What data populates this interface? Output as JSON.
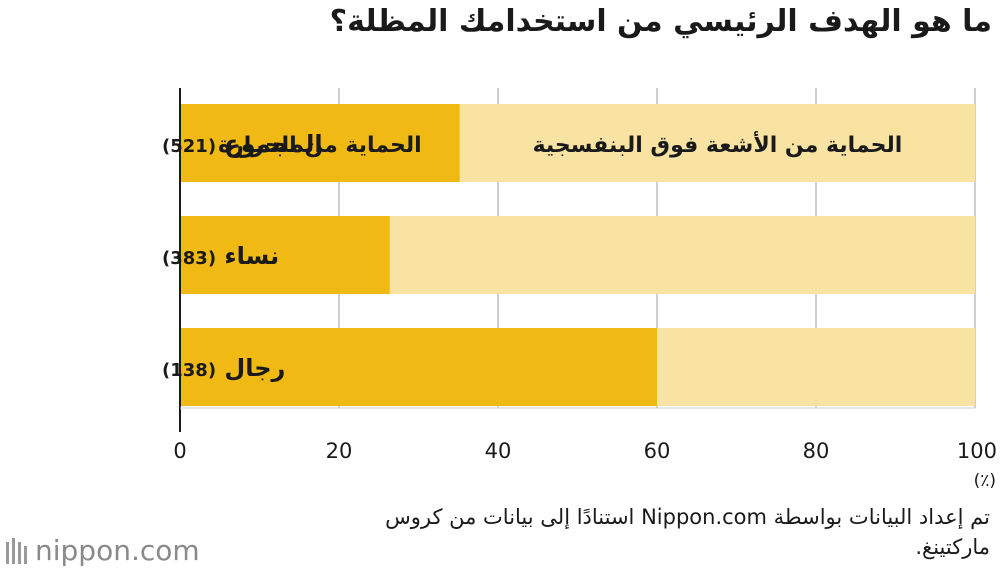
{
  "title": "ما هو الهدف الرئيسي من استخدامك المظلة؟",
  "chart_data": {
    "type": "bar",
    "orientation": "horizontal",
    "stacked": true,
    "categories": [
      "المجموع (521)",
      "نساء (383)",
      "رجال (138)"
    ],
    "category_names": [
      "المجموع",
      "نساء",
      "رجال"
    ],
    "category_counts": [
      "(521)",
      "(383)",
      "(138)"
    ],
    "series": [
      {
        "name": "الحماية من الحرارة",
        "values": [
          35.2,
          26.4,
          60.0
        ],
        "color": "#f0b914"
      },
      {
        "name": "الحماية من الأشعة فوق البنفسجية",
        "values": [
          64.8,
          73.6,
          40.0
        ],
        "color": "#f8e3a3"
      }
    ],
    "xlim": [
      0,
      100
    ],
    "xticks": [
      "0",
      "20",
      "40",
      "60",
      "80",
      "100"
    ],
    "xunit": "(٪)",
    "grid": true
  },
  "source": "تم إعداد البيانات بواسطة Nippon.com استنادًا إلى بيانات من كروس ماركتينغ.",
  "logo_text": "nippon.com"
}
